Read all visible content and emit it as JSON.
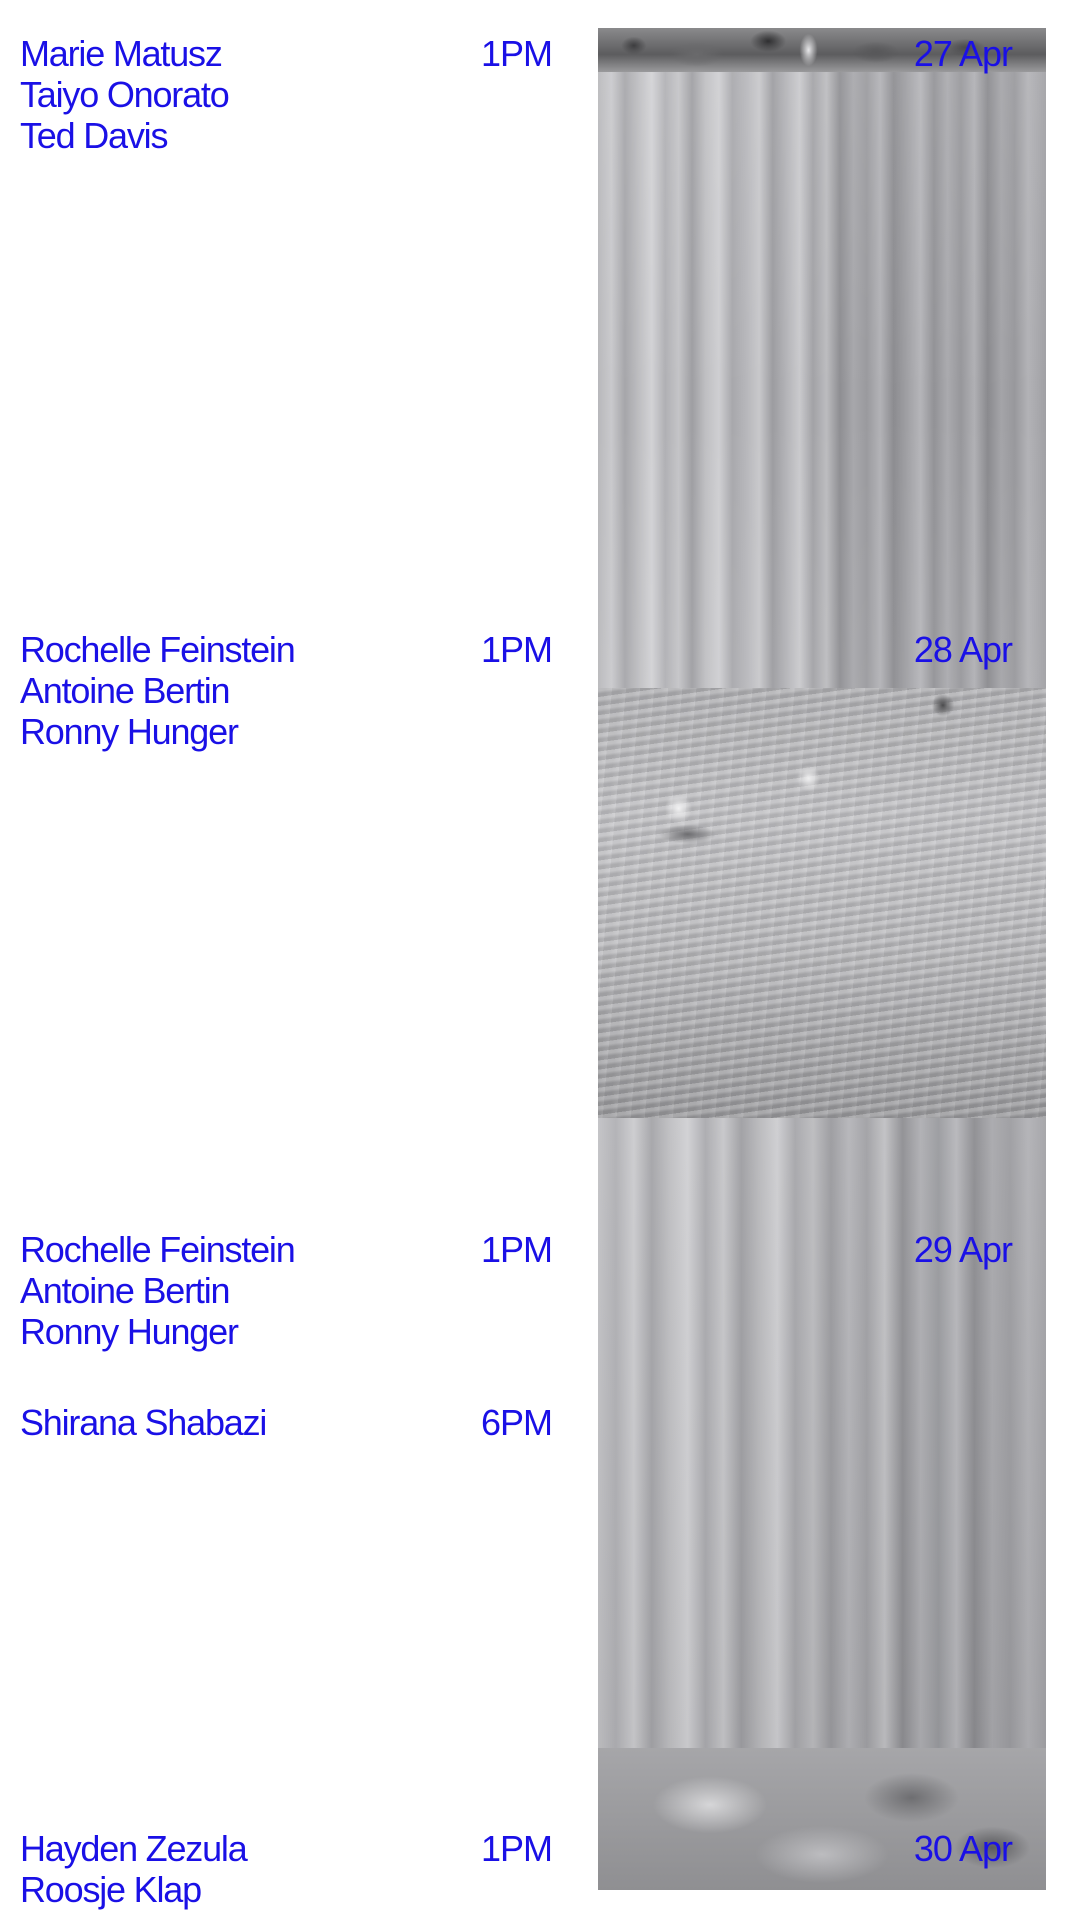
{
  "accent_color": "#1a10e6",
  "schedule": [
    {
      "date": "27 Apr",
      "sessions": [
        {
          "time": "1PM",
          "people": [
            "Marie Matusz",
            "Taiyo Onorato",
            "Ted Davis"
          ]
        }
      ]
    },
    {
      "date": "28 Apr",
      "sessions": [
        {
          "time": "1PM",
          "people": [
            "Rochelle Feinstein",
            "Antoine Bertin",
            "Ronny Hunger"
          ]
        }
      ]
    },
    {
      "date": "29 Apr",
      "sessions": [
        {
          "time": "1PM",
          "people": [
            "Rochelle Feinstein",
            "Antoine Bertin",
            "Ronny Hunger"
          ]
        },
        {
          "time": "6PM",
          "people": [
            "Shirana Shabazi"
          ]
        }
      ]
    },
    {
      "date": "30 Apr",
      "sessions": [
        {
          "time": "1PM",
          "people": [
            "Hayden Zezula",
            "Roosje Klap"
          ]
        }
      ]
    }
  ],
  "image": {
    "icon": "waterfall-photo",
    "style": "grayscale"
  }
}
